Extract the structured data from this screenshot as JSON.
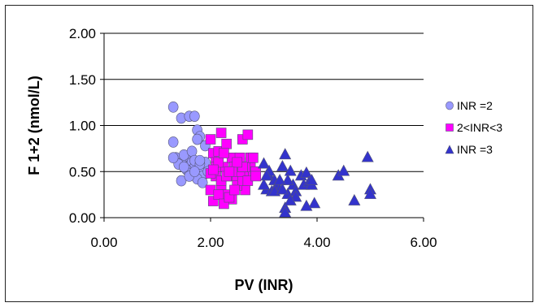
{
  "chart_data": {
    "type": "scatter",
    "title": "",
    "xlabel": "PV (INR)",
    "ylabel": "F 1+2 (nmol/L)",
    "xlim": [
      0,
      6
    ],
    "ylim": [
      0,
      2
    ],
    "x_ticks": [
      "0.00",
      "2.00",
      "4.00",
      "6.00"
    ],
    "y_ticks": [
      "0.00",
      "0.50",
      "1.00",
      "1.50",
      "2.00"
    ],
    "grid": "horizontal",
    "legend_position": "right",
    "series": [
      {
        "name": "INR =2",
        "marker": "circle",
        "color": "#9999ff",
        "x": [
          1.3,
          1.45,
          1.6,
          1.7,
          1.3,
          1.35,
          1.5,
          1.6,
          1.75,
          1.8,
          1.9,
          1.4,
          1.55,
          1.65,
          1.7,
          1.8,
          1.85,
          1.3,
          1.45,
          1.55,
          1.6,
          1.75,
          1.9,
          1.5,
          1.65,
          1.7,
          1.8,
          1.6,
          1.7,
          1.85,
          1.5,
          1.8,
          1.95,
          1.75
        ],
        "y": [
          1.2,
          1.08,
          1.1,
          1.1,
          0.82,
          0.65,
          0.62,
          0.66,
          0.95,
          0.88,
          0.78,
          0.58,
          0.55,
          0.6,
          0.55,
          0.5,
          0.45,
          0.65,
          0.4,
          0.52,
          0.48,
          0.42,
          0.6,
          0.68,
          0.72,
          0.62,
          0.58,
          0.45,
          0.5,
          0.38,
          0.55,
          0.62,
          0.5,
          0.85
        ]
      },
      {
        "name": "2<INR<3",
        "marker": "square",
        "color": "#ff00ff",
        "x": [
          2.0,
          2.05,
          2.1,
          2.15,
          2.2,
          2.25,
          2.3,
          2.35,
          2.4,
          2.45,
          2.5,
          2.55,
          2.6,
          2.65,
          2.7,
          2.75,
          2.8,
          2.85,
          2.0,
          2.1,
          2.2,
          2.3,
          2.4,
          2.5,
          2.6,
          2.7,
          2.05,
          2.15,
          2.25,
          2.35,
          2.45,
          2.55,
          2.65,
          2.75,
          2.0,
          2.2,
          2.4,
          2.6,
          2.8,
          2.1,
          2.3,
          2.5,
          2.7,
          2.15,
          2.35,
          2.25,
          2.05,
          2.85
        ],
        "y": [
          0.85,
          0.7,
          0.6,
          0.72,
          0.92,
          0.55,
          0.8,
          0.45,
          0.65,
          0.55,
          0.4,
          0.65,
          0.85,
          0.3,
          0.45,
          0.6,
          0.5,
          0.5,
          0.3,
          0.45,
          0.35,
          0.25,
          0.2,
          0.35,
          0.4,
          0.9,
          0.18,
          0.25,
          0.15,
          0.22,
          0.3,
          0.5,
          0.55,
          0.65,
          0.48,
          0.4,
          0.5,
          0.55,
          0.65,
          0.55,
          0.45,
          0.6,
          0.4,
          0.6,
          0.5,
          0.7,
          0.52,
          0.45
        ]
      },
      {
        "name": "INR =3",
        "marker": "triangle",
        "color": "#3333cc",
        "x": [
          3.0,
          3.05,
          3.1,
          3.15,
          3.2,
          3.25,
          3.3,
          3.35,
          3.4,
          3.45,
          3.5,
          3.55,
          3.6,
          3.7,
          3.75,
          3.8,
          3.85,
          3.9,
          3.95,
          4.4,
          4.5,
          4.7,
          4.95,
          5.0,
          5.0,
          3.4,
          3.4,
          3.45,
          3.8,
          3.1,
          3.3,
          3.0,
          3.2,
          3.6,
          3.9,
          3.5,
          3.35,
          3.05
        ],
        "y": [
          0.58,
          0.3,
          0.45,
          0.28,
          0.4,
          0.35,
          0.3,
          0.55,
          0.68,
          0.25,
          0.5,
          0.35,
          0.28,
          0.45,
          0.35,
          0.48,
          0.38,
          0.35,
          0.15,
          0.45,
          0.5,
          0.18,
          0.65,
          0.3,
          0.25,
          0.1,
          0.05,
          0.4,
          0.12,
          0.5,
          0.4,
          0.35,
          0.28,
          0.22,
          0.4,
          0.18,
          0.3,
          0.45
        ]
      }
    ]
  }
}
